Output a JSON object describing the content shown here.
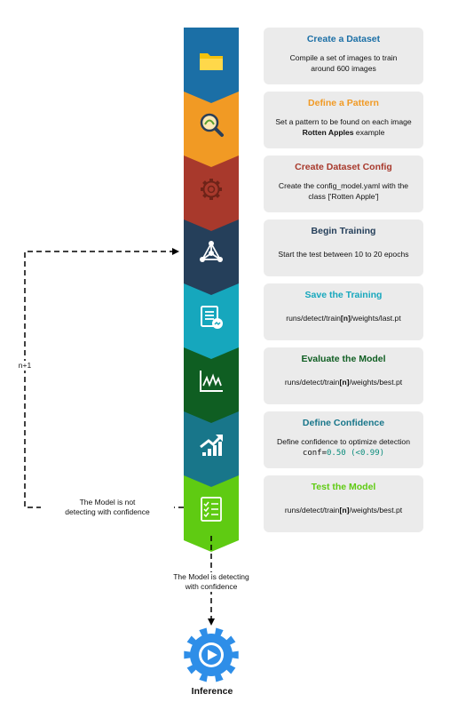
{
  "steps": [
    {
      "title": "Create a Dataset",
      "line1": "Compile a set of images to train",
      "line2": "around 600 images",
      "color": "#1b6fa6",
      "title_color": "#1b6fa6",
      "icon": "folder-icon"
    },
    {
      "title": "Define a Pattern",
      "line1": "Set a pattern to be found on each image",
      "line2_bold": "Rotten Apples",
      "line2_rest": " example",
      "color": "#f19a24",
      "title_color": "#f19a24",
      "icon": "magnifier-icon"
    },
    {
      "title": "Create Dataset Config",
      "line1": "Create the config_model.yaml with the",
      "line2": "class ['Rotten Apple']",
      "color": "#a8392c",
      "title_color": "#a8392c",
      "icon": "gear-icon"
    },
    {
      "title": "Begin Training",
      "line1": "Start the test between 10 to 20 epochs",
      "color": "#253f5a",
      "title_color": "#253f5a",
      "icon": "network-icon"
    },
    {
      "title": "Save the Training",
      "pre": "runs/detect/train",
      "bold": "[n]",
      "post": "/weights/last.pt",
      "color": "#16a7bd",
      "title_color": "#16a7bd",
      "icon": "report-icon"
    },
    {
      "title": "Evaluate the Model",
      "pre": "runs/detect/train",
      "bold": "[n]",
      "post": "/weights/best.pt",
      "color": "#0f5e22",
      "title_color": "#0f5e22",
      "icon": "chart-icon"
    },
    {
      "title": "Define Confidence",
      "line1": "Define confidence to optimize detection",
      "code_a": "conf=",
      "code_b": "0.50",
      "code_c": " (<0.99)",
      "color": "#18768a",
      "title_color": "#18768a",
      "icon": "trend-icon"
    },
    {
      "title": "Test the Model",
      "pre": "runs/detect/train",
      "bold": "[n]",
      "post": "/weights/best.pt",
      "color": "#5fcb12",
      "title_color": "#5fcb12",
      "icon": "checklist-icon"
    }
  ],
  "loop_label": "n+1",
  "not_confident_label": [
    "The Model is not",
    "detecting with confidence"
  ],
  "confident_label": [
    "The Model is detecting",
    "with confidence"
  ],
  "inference_label": "Inference",
  "inference_color": "#2e8ee8"
}
